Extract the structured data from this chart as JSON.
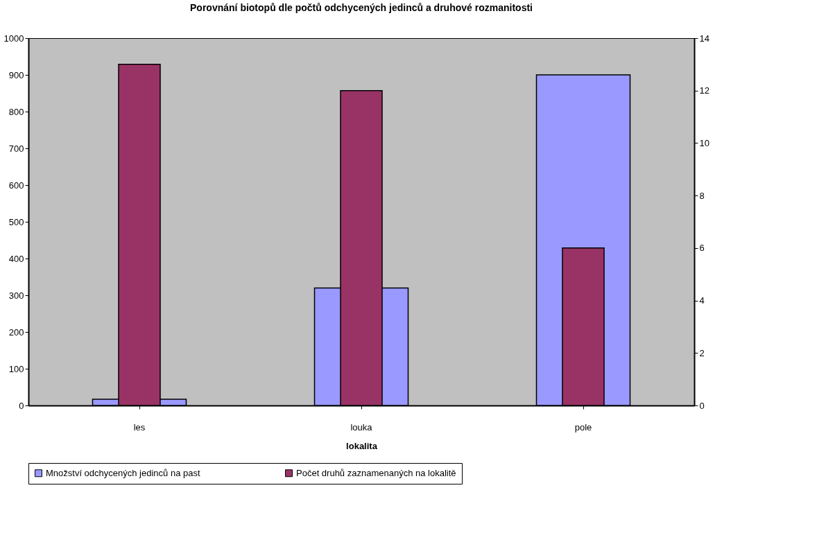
{
  "chart_data": {
    "type": "bar",
    "title": "Porovnání biotopů dle počtů odchycených jedinců a druhové rozmanitosti",
    "xlabel": "lokalita",
    "categories": [
      "les",
      "louka",
      "pole"
    ],
    "series": [
      {
        "name": "Množství odchycených jedinců na past",
        "color": "#9999ff",
        "values": [
          17,
          320,
          900
        ]
      },
      {
        "name": "Počet druhů zaznamenaných na lokalitě",
        "color": "#993366",
        "values": [
          13,
          12,
          6
        ],
        "axis": "y2"
      }
    ],
    "ylim": [
      0,
      1000
    ],
    "yticks": [
      0,
      100,
      200,
      300,
      400,
      500,
      600,
      700,
      800,
      900,
      1000
    ],
    "y2lim": [
      0,
      14
    ],
    "y2ticks": [
      0,
      2,
      4,
      6,
      8,
      10,
      12,
      14
    ],
    "grid": false,
    "legend": "bottom"
  }
}
